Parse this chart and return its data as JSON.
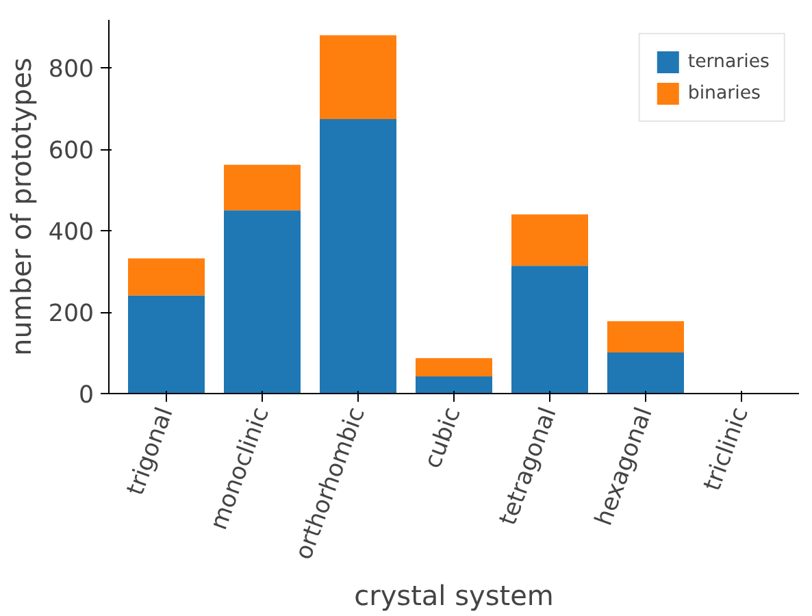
{
  "chart_data": {
    "type": "bar",
    "stacked": true,
    "xlabel": "crystal system",
    "ylabel": "number of prototypes",
    "categories": [
      "trigonal",
      "monoclinic",
      "orthorhombic",
      "cubic",
      "tetragonal",
      "hexagonal",
      "triclinic"
    ],
    "series": [
      {
        "name": "ternaries",
        "color": "#1f77b4",
        "values": [
          241,
          450,
          674,
          42,
          314,
          101,
          0
        ]
      },
      {
        "name": "binaries",
        "color": "#ff7f0e",
        "values": [
          91,
          112,
          206,
          45,
          126,
          77,
          0
        ]
      }
    ],
    "ylim": [
      0,
      918
    ],
    "yticks": [
      0,
      200,
      400,
      600,
      800
    ],
    "grid": false,
    "legend": "top right"
  }
}
